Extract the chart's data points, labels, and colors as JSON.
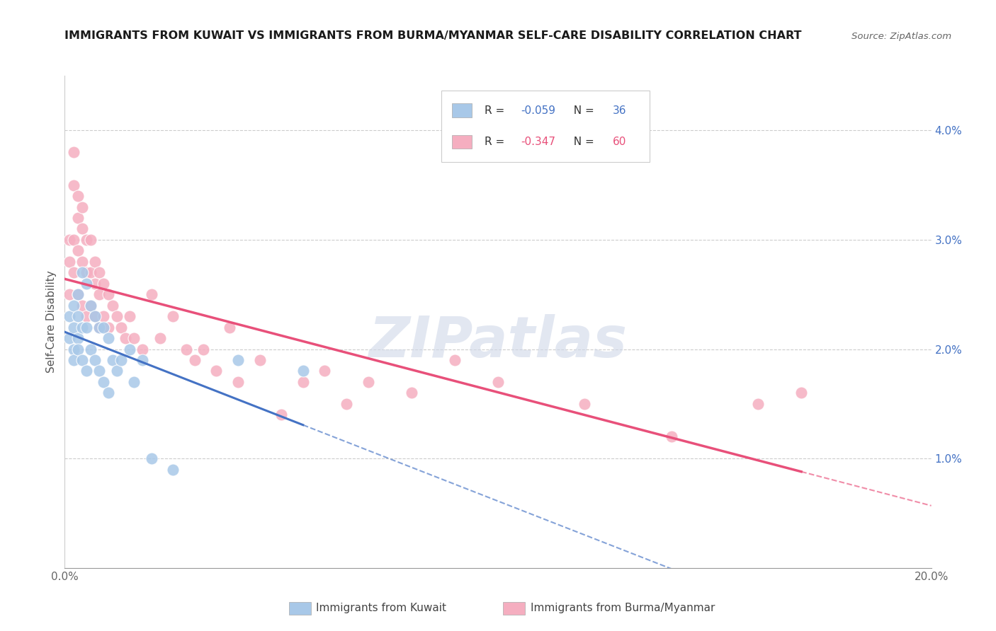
{
  "title": "IMMIGRANTS FROM KUWAIT VS IMMIGRANTS FROM BURMA/MYANMAR SELF-CARE DISABILITY CORRELATION CHART",
  "source": "Source: ZipAtlas.com",
  "ylabel": "Self-Care Disability",
  "xlim": [
    0.0,
    0.2
  ],
  "ylim": [
    0.0,
    0.045
  ],
  "kuwait_color": "#a8c8e8",
  "burma_color": "#f5aec0",
  "kuwait_line_color": "#4472c4",
  "burma_line_color": "#e8507a",
  "kuwait_R": -0.059,
  "kuwait_N": 36,
  "burma_R": -0.347,
  "burma_N": 60,
  "legend_label_kuwait": "Immigrants from Kuwait",
  "legend_label_burma": "Immigrants from Burma/Myanmar",
  "watermark": "ZIPatlas",
  "kuwait_x": [
    0.001,
    0.001,
    0.002,
    0.002,
    0.002,
    0.002,
    0.003,
    0.003,
    0.003,
    0.003,
    0.004,
    0.004,
    0.004,
    0.005,
    0.005,
    0.005,
    0.006,
    0.006,
    0.007,
    0.007,
    0.008,
    0.008,
    0.009,
    0.009,
    0.01,
    0.01,
    0.011,
    0.012,
    0.013,
    0.015,
    0.016,
    0.018,
    0.02,
    0.025,
    0.04,
    0.055
  ],
  "kuwait_y": [
    0.023,
    0.021,
    0.024,
    0.022,
    0.02,
    0.019,
    0.025,
    0.023,
    0.021,
    0.02,
    0.027,
    0.022,
    0.019,
    0.026,
    0.022,
    0.018,
    0.024,
    0.02,
    0.023,
    0.019,
    0.022,
    0.018,
    0.022,
    0.017,
    0.021,
    0.016,
    0.019,
    0.018,
    0.019,
    0.02,
    0.017,
    0.019,
    0.01,
    0.009,
    0.019,
    0.018
  ],
  "burma_x": [
    0.001,
    0.001,
    0.001,
    0.002,
    0.002,
    0.002,
    0.002,
    0.003,
    0.003,
    0.003,
    0.003,
    0.004,
    0.004,
    0.004,
    0.004,
    0.005,
    0.005,
    0.005,
    0.006,
    0.006,
    0.006,
    0.007,
    0.007,
    0.007,
    0.008,
    0.008,
    0.008,
    0.009,
    0.009,
    0.01,
    0.01,
    0.011,
    0.012,
    0.013,
    0.014,
    0.015,
    0.016,
    0.018,
    0.02,
    0.022,
    0.025,
    0.028,
    0.03,
    0.032,
    0.035,
    0.038,
    0.04,
    0.045,
    0.05,
    0.055,
    0.06,
    0.065,
    0.07,
    0.08,
    0.09,
    0.1,
    0.12,
    0.14,
    0.16,
    0.17
  ],
  "burma_y": [
    0.03,
    0.028,
    0.025,
    0.038,
    0.035,
    0.03,
    0.027,
    0.034,
    0.032,
    0.029,
    0.025,
    0.033,
    0.031,
    0.028,
    0.024,
    0.03,
    0.027,
    0.023,
    0.03,
    0.027,
    0.024,
    0.028,
    0.026,
    0.023,
    0.027,
    0.025,
    0.022,
    0.026,
    0.023,
    0.025,
    0.022,
    0.024,
    0.023,
    0.022,
    0.021,
    0.023,
    0.021,
    0.02,
    0.025,
    0.021,
    0.023,
    0.02,
    0.019,
    0.02,
    0.018,
    0.022,
    0.017,
    0.019,
    0.014,
    0.017,
    0.018,
    0.015,
    0.017,
    0.016,
    0.019,
    0.017,
    0.015,
    0.012,
    0.015,
    0.016
  ],
  "x_tick_positions": [
    0.0,
    0.04,
    0.08,
    0.12,
    0.16,
    0.2
  ],
  "y_tick_positions": [
    0.01,
    0.02,
    0.03,
    0.04
  ],
  "y_tick_labels": [
    "1.0%",
    "2.0%",
    "3.0%",
    "4.0%"
  ]
}
